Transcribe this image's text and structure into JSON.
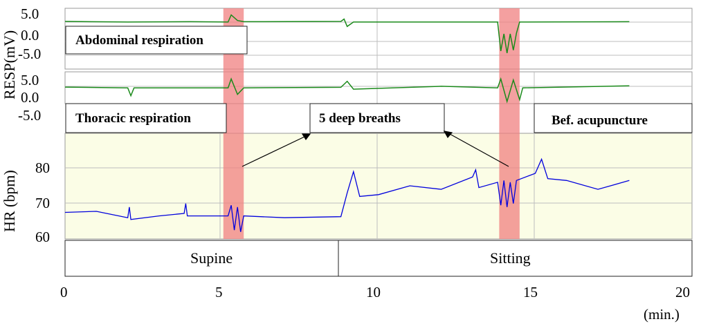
{
  "chart_data": {
    "type": "line",
    "x_unit": "(min.)",
    "x_ticks": [
      "0",
      "5",
      "10",
      "15",
      "20"
    ],
    "xlim": [
      0,
      20
    ],
    "panels": [
      {
        "id": "abdominal",
        "ylabel": "RESP(mV)",
        "y_ticks": [
          "5.0",
          "0.0",
          "-5.0"
        ],
        "label": "Abdominal respiration",
        "series": {
          "color": "#1a8a1a",
          "points": [
            [
              0,
              3.2
            ],
            [
              2,
              3.0
            ],
            [
              4,
              3.1
            ],
            [
              5.2,
              3.0
            ],
            [
              5.3,
              5.4
            ],
            [
              5.5,
              3.5
            ],
            [
              5.7,
              3.1
            ],
            [
              8.8,
              3.2
            ],
            [
              8.9,
              4.0
            ],
            [
              9.0,
              1.5
            ],
            [
              9.2,
              3.0
            ],
            [
              13.8,
              3.0
            ],
            [
              13.9,
              -6.8
            ],
            [
              14.0,
              -1.0
            ],
            [
              14.1,
              -7.5
            ],
            [
              14.2,
              -1.0
            ],
            [
              14.3,
              -6.5
            ],
            [
              14.4,
              -0.8
            ],
            [
              14.5,
              3.0
            ],
            [
              18,
              3.1
            ]
          ]
        }
      },
      {
        "id": "thoracic",
        "ylabel": "RESP(mV)",
        "y_ticks": [
          "5.0",
          "0.0",
          "-5.0"
        ],
        "label": "Thoracic respiration",
        "series": {
          "color": "#1a8a1a",
          "points": [
            [
              0,
              2.3
            ],
            [
              2,
              2.0
            ],
            [
              2.1,
              -1.0
            ],
            [
              2.2,
              2.0
            ],
            [
              5.2,
              2.0
            ],
            [
              5.3,
              5.4
            ],
            [
              5.5,
              -0.5
            ],
            [
              5.7,
              2.0
            ],
            [
              8.8,
              2.2
            ],
            [
              9.0,
              4.5
            ],
            [
              9.2,
              1.5
            ],
            [
              12,
              2.6
            ],
            [
              13.8,
              2.0
            ],
            [
              13.9,
              5.4
            ],
            [
              14.1,
              -3.2
            ],
            [
              14.3,
              5.0
            ],
            [
              14.5,
              -2.5
            ],
            [
              14.6,
              2.0
            ],
            [
              18,
              2.8
            ]
          ]
        }
      },
      {
        "id": "hr",
        "ylabel": "HR (bpm)",
        "y_ticks": [
          "80",
          "70",
          "60"
        ],
        "ylim": [
          60,
          90
        ],
        "label": "Bef. acupuncture",
        "series": {
          "color": "#0000dd",
          "points": [
            [
              0,
              67.5
            ],
            [
              1,
              67.8
            ],
            [
              2,
              66
            ],
            [
              2.05,
              69
            ],
            [
              2.1,
              65.5
            ],
            [
              3,
              66.5
            ],
            [
              3.8,
              67.2
            ],
            [
              3.85,
              70
            ],
            [
              3.9,
              66.5
            ],
            [
              5.2,
              66.5
            ],
            [
              5.3,
              69.5
            ],
            [
              5.4,
              62.5
            ],
            [
              5.5,
              69
            ],
            [
              5.6,
              62
            ],
            [
              5.7,
              66.5
            ],
            [
              7,
              66
            ],
            [
              8.8,
              66.3
            ],
            [
              9,
              73
            ],
            [
              9.2,
              79
            ],
            [
              9.4,
              72
            ],
            [
              10,
              72.5
            ],
            [
              11,
              75
            ],
            [
              12,
              74
            ],
            [
              13,
              77.5
            ],
            [
              13.1,
              79.5
            ],
            [
              13.2,
              74.5
            ],
            [
              13.8,
              76
            ],
            [
              13.9,
              69.5
            ],
            [
              14,
              76.5
            ],
            [
              14.1,
              69
            ],
            [
              14.2,
              76
            ],
            [
              14.3,
              70
            ],
            [
              14.4,
              76.5
            ],
            [
              15,
              78.5
            ],
            [
              15.2,
              82.5
            ],
            [
              15.4,
              77
            ],
            [
              16,
              76.5
            ],
            [
              17,
              74
            ],
            [
              18,
              76.5
            ]
          ]
        }
      }
    ],
    "highlight_bands": [
      [
        5.05,
        5.7
      ],
      [
        13.85,
        14.5
      ]
    ],
    "annotations": [
      "5 deep breaths"
    ],
    "position_labels": [
      "Supine",
      "Sitting"
    ],
    "position_change_at": 8.8,
    "grid": true,
    "colors": {
      "resp": "#1a8a1a",
      "hr": "#0000dd",
      "band": "#f08080",
      "hr_background": "#fbfde6",
      "grid": "#bdbdbd"
    }
  }
}
